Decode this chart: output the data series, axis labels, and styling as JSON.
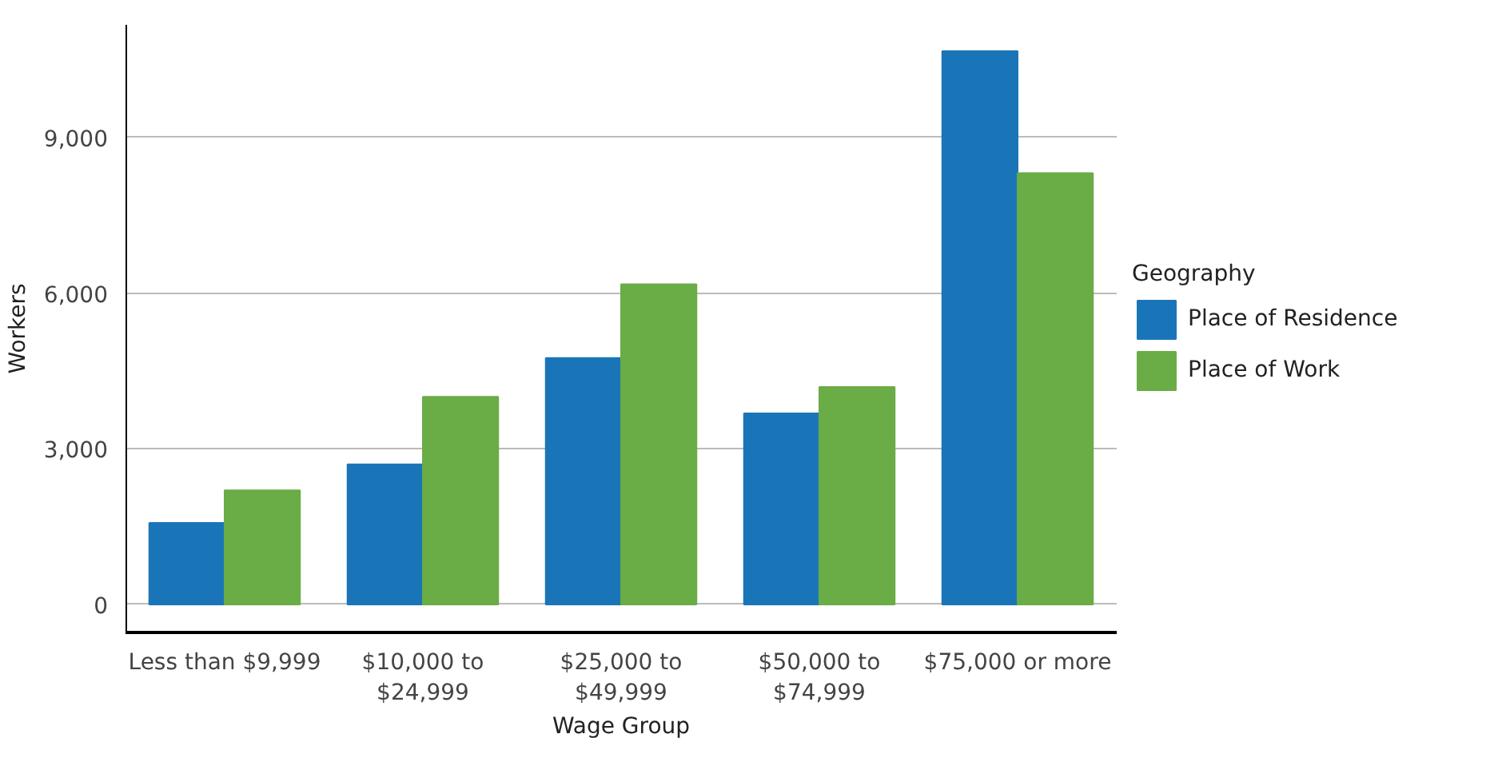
{
  "chart_data": {
    "type": "bar",
    "xlabel": "Wage Group",
    "ylabel": "Workers",
    "legend_title": "Geography",
    "categories": [
      "Less than $9,999",
      "$10,000 to $24,999",
      "$25,000 to $49,999",
      "$50,000 to $74,999",
      "$75,000 or more"
    ],
    "series": [
      {
        "name": "Place of Residence",
        "color": "#1a75b8",
        "values": [
          1570,
          2700,
          4750,
          3680,
          10660
        ]
      },
      {
        "name": "Place of Work",
        "color": "#6aac46",
        "values": [
          2200,
          4000,
          6170,
          4190,
          8310
        ]
      }
    ],
    "ylim": [
      -540,
      11170
    ],
    "yticks": [
      {
        "value": 0,
        "label": "0"
      },
      {
        "value": 3000,
        "label": "3,000"
      },
      {
        "value": 6000,
        "label": "6,000"
      },
      {
        "value": 9000,
        "label": "9,000"
      }
    ],
    "grid": "y",
    "legend": "right"
  }
}
